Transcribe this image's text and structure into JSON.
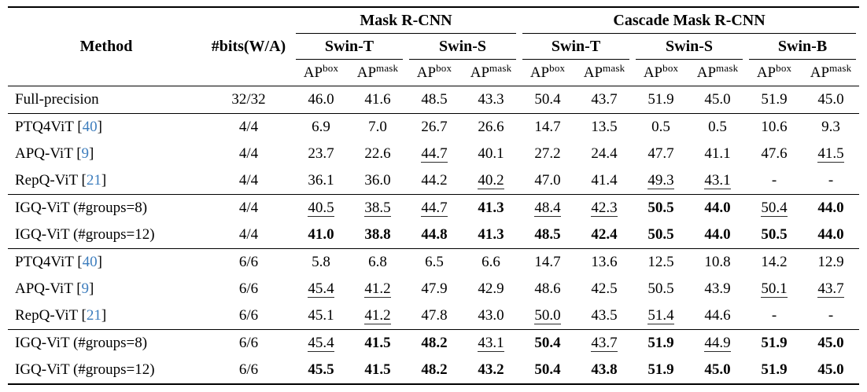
{
  "colors": {
    "citation_blue": "#3d7dbd",
    "text": "#000000",
    "rule": "#000000"
  },
  "table": {
    "method_header": "Method",
    "bits_header": "#bits(W/A)",
    "groups": [
      {
        "label": "Mask R-CNN",
        "span": 4
      },
      {
        "label": "Cascade Mask R-CNN",
        "span": 6
      }
    ],
    "backbones": [
      "Swin-T",
      "Swin-S",
      "Swin-T",
      "Swin-S",
      "Swin-B"
    ],
    "ap_base": "AP",
    "ap_sups": [
      "box",
      "mask"
    ],
    "rows": [
      {
        "method": "Full-precision",
        "cite": null,
        "bits": "32/32",
        "rule_after": true,
        "cells": [
          [
            "46.0",
            ""
          ],
          [
            "41.6",
            ""
          ],
          [
            "48.5",
            ""
          ],
          [
            "43.3",
            ""
          ],
          [
            "50.4",
            ""
          ],
          [
            "43.7",
            ""
          ],
          [
            "51.9",
            ""
          ],
          [
            "45.0",
            ""
          ],
          [
            "51.9",
            ""
          ],
          [
            "45.0",
            ""
          ]
        ]
      },
      {
        "method": "PTQ4ViT",
        "cite": "40",
        "bits": "4/4",
        "rule_after": false,
        "cells": [
          [
            "6.9",
            ""
          ],
          [
            "7.0",
            ""
          ],
          [
            "26.7",
            ""
          ],
          [
            "26.6",
            ""
          ],
          [
            "14.7",
            ""
          ],
          [
            "13.5",
            ""
          ],
          [
            "0.5",
            ""
          ],
          [
            "0.5",
            ""
          ],
          [
            "10.6",
            ""
          ],
          [
            "9.3",
            ""
          ]
        ]
      },
      {
        "method": "APQ-ViT",
        "cite": "9",
        "bits": "4/4",
        "rule_after": false,
        "cells": [
          [
            "23.7",
            ""
          ],
          [
            "22.6",
            ""
          ],
          [
            "44.7",
            "u"
          ],
          [
            "40.1",
            ""
          ],
          [
            "27.2",
            ""
          ],
          [
            "24.4",
            ""
          ],
          [
            "47.7",
            ""
          ],
          [
            "41.1",
            ""
          ],
          [
            "47.6",
            ""
          ],
          [
            "41.5",
            "u"
          ]
        ]
      },
      {
        "method": "RepQ-ViT",
        "cite": "21",
        "bits": "4/4",
        "rule_after": true,
        "cells": [
          [
            "36.1",
            ""
          ],
          [
            "36.0",
            ""
          ],
          [
            "44.2",
            ""
          ],
          [
            "40.2",
            "u"
          ],
          [
            "47.0",
            ""
          ],
          [
            "41.4",
            ""
          ],
          [
            "49.3",
            "u"
          ],
          [
            "43.1",
            "u"
          ],
          [
            "-",
            ""
          ],
          [
            "-",
            ""
          ]
        ]
      },
      {
        "method": "IGQ-ViT (#groups=8)",
        "cite": null,
        "bits": "4/4",
        "rule_after": false,
        "cells": [
          [
            "40.5",
            "u"
          ],
          [
            "38.5",
            "u"
          ],
          [
            "44.7",
            "u"
          ],
          [
            "41.3",
            "b"
          ],
          [
            "48.4",
            "u"
          ],
          [
            "42.3",
            "u"
          ],
          [
            "50.5",
            "b"
          ],
          [
            "44.0",
            "b"
          ],
          [
            "50.4",
            "u"
          ],
          [
            "44.0",
            "b"
          ]
        ]
      },
      {
        "method": "IGQ-ViT (#groups=12)",
        "cite": null,
        "bits": "4/4",
        "rule_after": true,
        "cells": [
          [
            "41.0",
            "b"
          ],
          [
            "38.8",
            "b"
          ],
          [
            "44.8",
            "b"
          ],
          [
            "41.3",
            "b"
          ],
          [
            "48.5",
            "b"
          ],
          [
            "42.4",
            "b"
          ],
          [
            "50.5",
            "b"
          ],
          [
            "44.0",
            "b"
          ],
          [
            "50.5",
            "b"
          ],
          [
            "44.0",
            "b"
          ]
        ]
      },
      {
        "method": "PTQ4ViT",
        "cite": "40",
        "bits": "6/6",
        "rule_after": false,
        "cells": [
          [
            "5.8",
            ""
          ],
          [
            "6.8",
            ""
          ],
          [
            "6.5",
            ""
          ],
          [
            "6.6",
            ""
          ],
          [
            "14.7",
            ""
          ],
          [
            "13.6",
            ""
          ],
          [
            "12.5",
            ""
          ],
          [
            "10.8",
            ""
          ],
          [
            "14.2",
            ""
          ],
          [
            "12.9",
            ""
          ]
        ]
      },
      {
        "method": "APQ-ViT",
        "cite": "9",
        "bits": "6/6",
        "rule_after": false,
        "cells": [
          [
            "45.4",
            "u"
          ],
          [
            "41.2",
            "u"
          ],
          [
            "47.9",
            ""
          ],
          [
            "42.9",
            ""
          ],
          [
            "48.6",
            ""
          ],
          [
            "42.5",
            ""
          ],
          [
            "50.5",
            ""
          ],
          [
            "43.9",
            ""
          ],
          [
            "50.1",
            "u"
          ],
          [
            "43.7",
            "u"
          ]
        ]
      },
      {
        "method": "RepQ-ViT",
        "cite": "21",
        "bits": "6/6",
        "rule_after": true,
        "cells": [
          [
            "45.1",
            ""
          ],
          [
            "41.2",
            "u"
          ],
          [
            "47.8",
            ""
          ],
          [
            "43.0",
            ""
          ],
          [
            "50.0",
            "u"
          ],
          [
            "43.5",
            ""
          ],
          [
            "51.4",
            "u"
          ],
          [
            "44.6",
            ""
          ],
          [
            "-",
            ""
          ],
          [
            "-",
            ""
          ]
        ]
      },
      {
        "method": "IGQ-ViT (#groups=8)",
        "cite": null,
        "bits": "6/6",
        "rule_after": false,
        "cells": [
          [
            "45.4",
            "u"
          ],
          [
            "41.5",
            "b"
          ],
          [
            "48.2",
            "b"
          ],
          [
            "43.1",
            "u"
          ],
          [
            "50.4",
            "b"
          ],
          [
            "43.7",
            "u"
          ],
          [
            "51.9",
            "b"
          ],
          [
            "44.9",
            "u"
          ],
          [
            "51.9",
            "b"
          ],
          [
            "45.0",
            "b"
          ]
        ]
      },
      {
        "method": "IGQ-ViT (#groups=12)",
        "cite": null,
        "bits": "6/6",
        "rule_after": false,
        "cells": [
          [
            "45.5",
            "b"
          ],
          [
            "41.5",
            "b"
          ],
          [
            "48.2",
            "b"
          ],
          [
            "43.2",
            "b"
          ],
          [
            "50.4",
            "b"
          ],
          [
            "43.8",
            "b"
          ],
          [
            "51.9",
            "b"
          ],
          [
            "45.0",
            "b"
          ],
          [
            "51.9",
            "b"
          ],
          [
            "45.0",
            "b"
          ]
        ]
      }
    ]
  }
}
